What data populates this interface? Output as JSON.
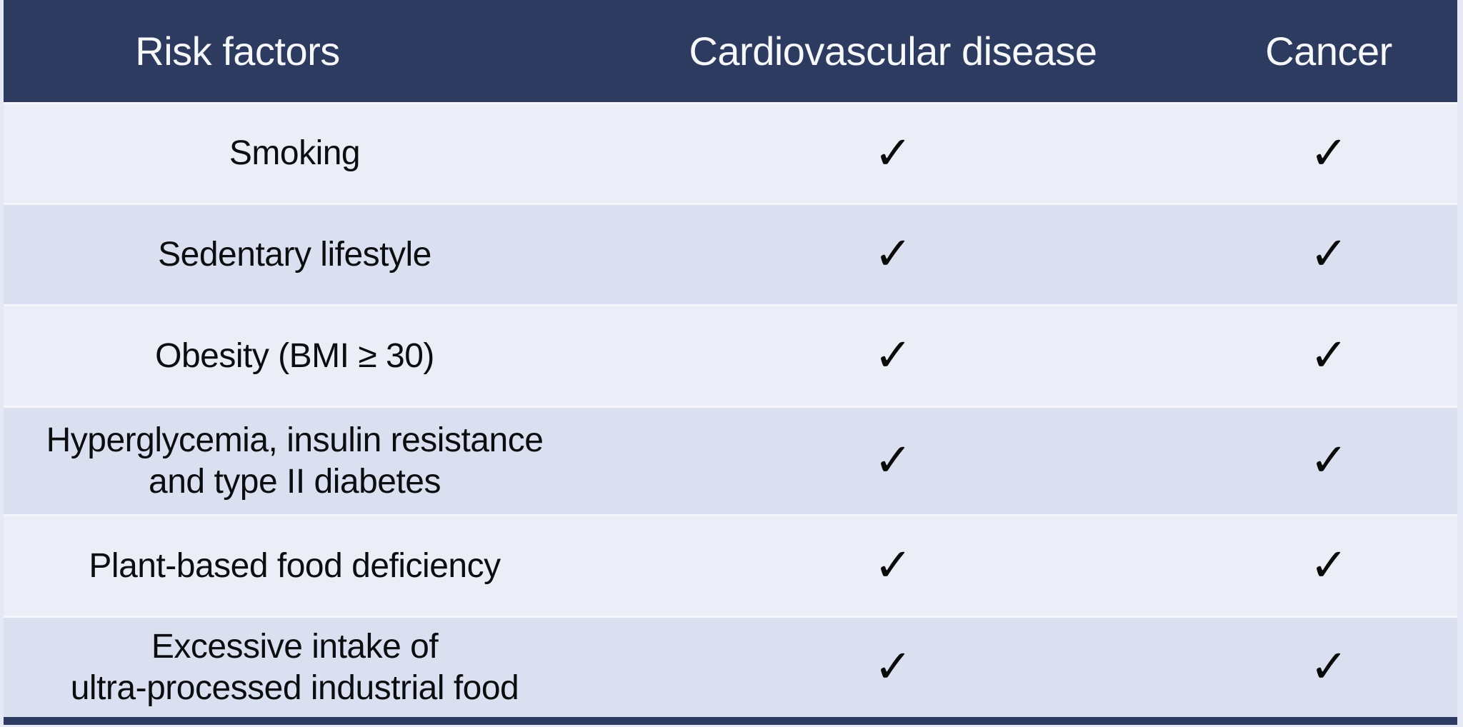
{
  "colors": {
    "header_background": "#2e3b60",
    "header_text": "#f7f8fa",
    "row_light_background": "#eceef7",
    "row_dark_background": "#dbe0f0",
    "body_text": "#0c0d10",
    "check_color": "#0a0a0a",
    "page_edge": "#e6e9f5"
  },
  "table": {
    "check_symbol": "✓",
    "columns": [
      "Risk factors",
      "Cardiovascular disease",
      "Cancer"
    ],
    "rows": [
      {
        "risk_factor": "Smoking",
        "cardiovascular_disease": true,
        "cancer": true
      },
      {
        "risk_factor": "Sedentary lifestyle",
        "cardiovascular_disease": true,
        "cancer": true
      },
      {
        "risk_factor": "Obesity (BMI ≥ 30)",
        "cardiovascular_disease": true,
        "cancer": true
      },
      {
        "risk_factor": "Hyperglycemia, insulin resistance\nand type II diabetes",
        "cardiovascular_disease": true,
        "cancer": true
      },
      {
        "risk_factor": "Plant-based food deficiency",
        "cardiovascular_disease": true,
        "cancer": true
      },
      {
        "risk_factor": "Excessive intake of\nultra-processed industrial food",
        "cardiovascular_disease": true,
        "cancer": true
      }
    ]
  }
}
